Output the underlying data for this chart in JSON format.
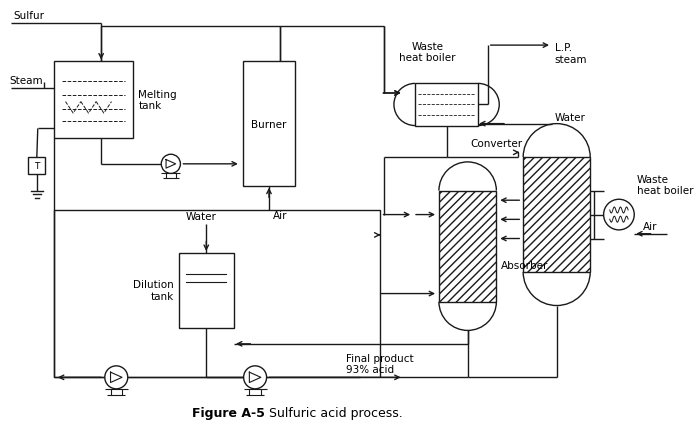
{
  "title": "Figure A-5",
  "subtitle": "Sulfuric acid process.",
  "background_color": "#ffffff",
  "line_color": "#1a1a1a",
  "labels": {
    "sulfur": "Sulfur",
    "steam": "Steam",
    "melting_tank": "Melting\ntank",
    "burner": "Burner",
    "air_burner": "Air",
    "waste_heat_boiler_top": "Waste\nheat boiler",
    "lp_steam": "L.P.\nsteam",
    "water_top": "Water",
    "converter": "Converter",
    "absorber": "Absorber",
    "waste_heat_boiler_right": "Waste\nheat boiler",
    "air_right": "Air",
    "water_left": "Water",
    "dilution_tank": "Dilution\ntank",
    "final_product": "Final product\n93% acid"
  }
}
